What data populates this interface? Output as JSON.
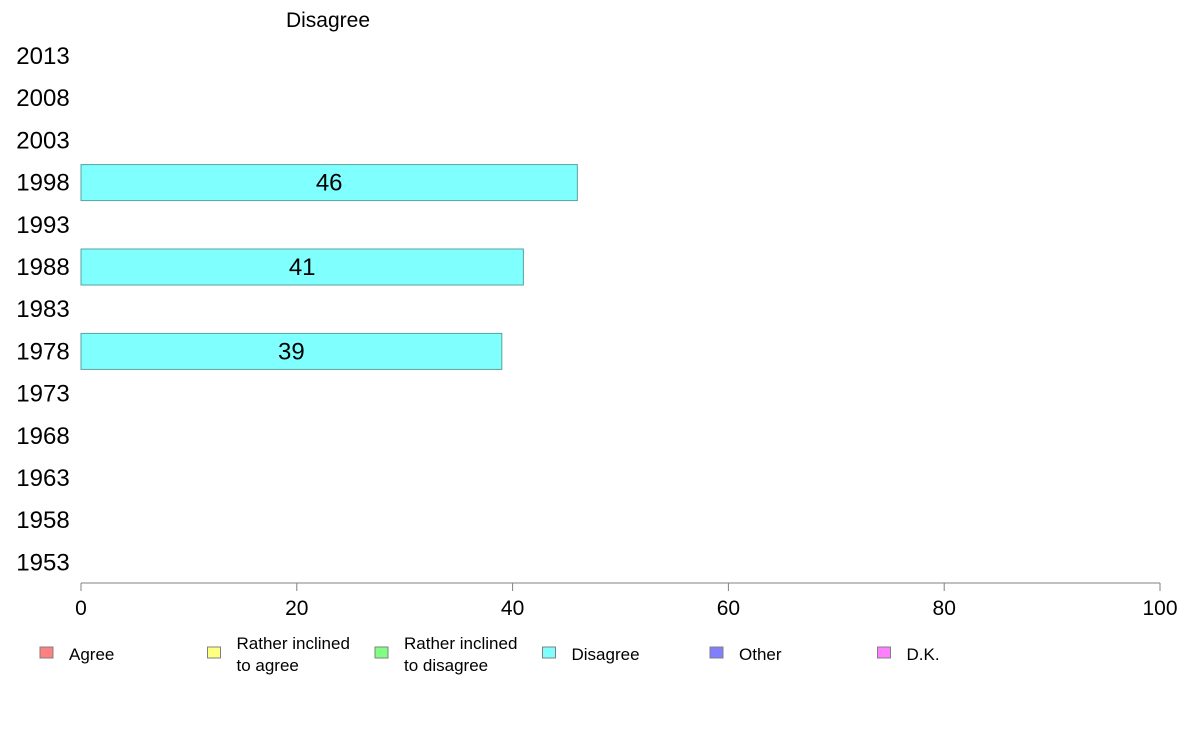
{
  "chart_data": {
    "type": "bar",
    "orientation": "horizontal",
    "title": "Disagree",
    "categories": [
      "2013",
      "2008",
      "2003",
      "1998",
      "1993",
      "1988",
      "1983",
      "1978",
      "1973",
      "1968",
      "1963",
      "1958",
      "1953"
    ],
    "series": [
      {
        "name": "Disagree",
        "color": "#80ffff",
        "values": [
          null,
          null,
          null,
          46,
          null,
          41,
          null,
          39,
          null,
          null,
          null,
          null,
          null
        ],
        "labels": [
          "",
          "",
          "",
          "46",
          "",
          "41",
          "",
          "39",
          "",
          "",
          "",
          "",
          ""
        ]
      }
    ],
    "xlim": [
      0,
      100
    ],
    "xticks": [
      0,
      20,
      40,
      60,
      80,
      100
    ],
    "xtick_labels": [
      "0",
      "20",
      "40",
      "60",
      "80",
      "100"
    ],
    "xlabel": "",
    "ylabel": "",
    "grid": false,
    "legend_position": "bottom",
    "legend": [
      {
        "lines": [
          "Agree"
        ],
        "color": "#ff8080"
      },
      {
        "lines": [
          "Rather inclined",
          "to agree"
        ],
        "color": "#ffff80"
      },
      {
        "lines": [
          "Rather inclined",
          "to disagree"
        ],
        "color": "#80ff80"
      },
      {
        "lines": [
          "Disagree"
        ],
        "color": "#80ffff"
      },
      {
        "lines": [
          "Other"
        ],
        "color": "#8080ff"
      },
      {
        "lines": [
          "D.K."
        ],
        "color": "#ff80ff"
      }
    ],
    "colors": {
      "axis": "#808080",
      "bar_border": "#5aa0a0",
      "legend_border": "#808080"
    }
  }
}
